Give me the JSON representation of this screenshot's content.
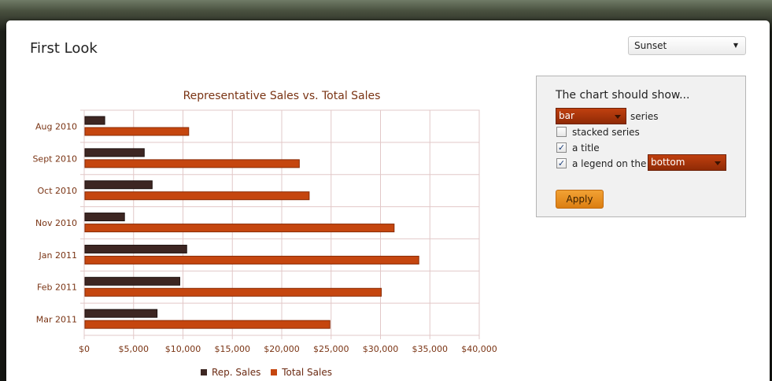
{
  "page": {
    "title": "First Look"
  },
  "theme_select": {
    "value": "Sunset"
  },
  "options": {
    "heading": "The chart should show...",
    "series_type": "bar",
    "series_suffix": "series",
    "stacked_label": "stacked series",
    "stacked_checked": false,
    "title_label": "a title",
    "title_checked": true,
    "legend_label": "a legend on the",
    "legend_checked": true,
    "legend_position": "bottom",
    "apply_label": "Apply"
  },
  "colors": {
    "rep": "#3d2622",
    "total": "#c5460f",
    "grid": "#e2c8c8",
    "label": "#7a3414"
  },
  "chart_data": {
    "type": "bar",
    "orientation": "horizontal",
    "title": "Representative Sales vs. Total Sales",
    "categories": [
      "Aug 2010",
      "Sept 2010",
      "Oct 2010",
      "Nov 2010",
      "Jan 2011",
      "Feb 2011",
      "Mar 2011"
    ],
    "series": [
      {
        "name": "Rep. Sales",
        "values": [
          2000,
          6000,
          6800,
          4000,
          10300,
          9600,
          7300
        ]
      },
      {
        "name": "Total Sales",
        "values": [
          10500,
          21700,
          22700,
          31300,
          33800,
          30000,
          24800
        ]
      }
    ],
    "xlim": [
      0,
      40000
    ],
    "x_ticks": [
      "$0",
      "$5,000",
      "$10,000",
      "$15,000",
      "$20,000",
      "$25,000",
      "$30,000",
      "$35,000",
      "$40,000"
    ],
    "grid": true,
    "legend": "bottom"
  }
}
